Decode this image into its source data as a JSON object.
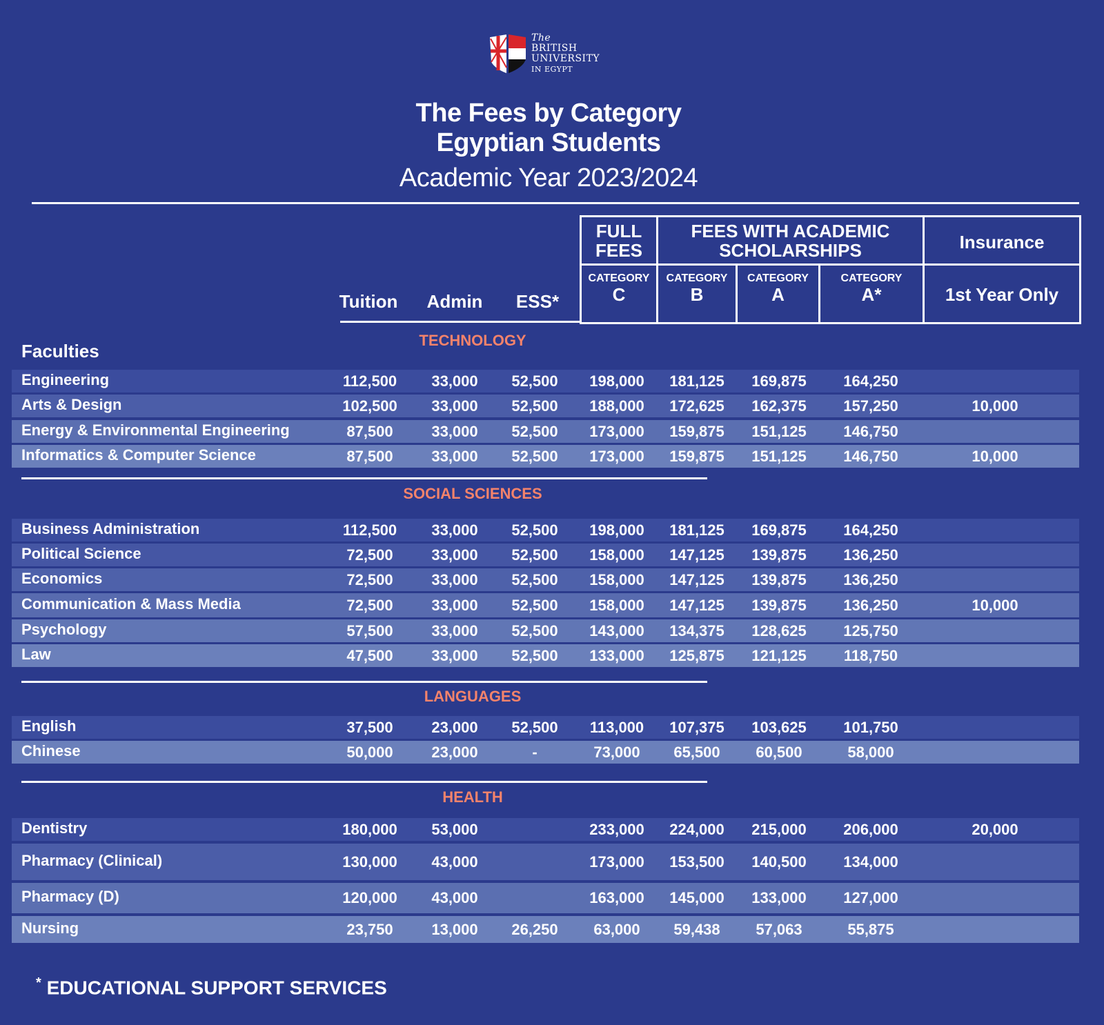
{
  "logo": {
    "line1": "The",
    "line2": "BRITISH",
    "line3": "UNIVERSITY",
    "line4": "IN EGYPT"
  },
  "title": {
    "line1": "The Fees by Category",
    "line2": "Egyptian Students",
    "subtitle": "Academic Year 2023/2024"
  },
  "header": {
    "full_fees": "FULL FEES",
    "scholarships": "FEES WITH ACADEMIC SCHOLARSHIPS",
    "insurance": "Insurance",
    "category_label": "CATEGORY",
    "cat_c": "C",
    "cat_b": "B",
    "cat_a": "A",
    "cat_astar": "A*",
    "first_year": "1st Year Only",
    "tuition": "Tuition",
    "admin": "Admin",
    "ess": "ESS*",
    "faculties": "Faculties"
  },
  "colors": {
    "background": "#2b3a8c",
    "section_heading": "#f4836b",
    "row_dark": "#3b4c9e",
    "row_light": "#6b80bb"
  },
  "sections": [
    {
      "name": "TECHNOLOGY",
      "rows": [
        {
          "faculty": "Engineering",
          "values": [
            "112,500",
            "33,000",
            "52,500",
            "198,000",
            "181,125",
            "169,875",
            "164,250",
            ""
          ]
        },
        {
          "faculty": "Arts & Design",
          "values": [
            "102,500",
            "33,000",
            "52,500",
            "188,000",
            "172,625",
            "162,375",
            "157,250",
            "10,000"
          ]
        },
        {
          "faculty": "Energy & Environmental Engineering",
          "values": [
            "87,500",
            "33,000",
            "52,500",
            "173,000",
            "159,875",
            "151,125",
            "146,750",
            ""
          ]
        },
        {
          "faculty": "Informatics & Computer Science",
          "values": [
            "87,500",
            "33,000",
            "52,500",
            "173,000",
            "159,875",
            "151,125",
            "146,750",
            "10,000"
          ]
        }
      ]
    },
    {
      "name": "SOCIAL SCIENCES",
      "rows": [
        {
          "faculty": "Business Administration",
          "values": [
            "112,500",
            "33,000",
            "52,500",
            "198,000",
            "181,125",
            "169,875",
            "164,250",
            ""
          ]
        },
        {
          "faculty": "Political Science",
          "values": [
            "72,500",
            "33,000",
            "52,500",
            "158,000",
            "147,125",
            "139,875",
            "136,250",
            ""
          ]
        },
        {
          "faculty": "Economics",
          "values": [
            "72,500",
            "33,000",
            "52,500",
            "158,000",
            "147,125",
            "139,875",
            "136,250",
            ""
          ]
        },
        {
          "faculty": "Communication & Mass Media",
          "values": [
            "72,500",
            "33,000",
            "52,500",
            "158,000",
            "147,125",
            "139,875",
            "136,250",
            "10,000"
          ]
        },
        {
          "faculty": "Psychology",
          "values": [
            "57,500",
            "33,000",
            "52,500",
            "143,000",
            "134,375",
            "128,625",
            "125,750",
            ""
          ]
        },
        {
          "faculty": "Law",
          "values": [
            "47,500",
            "33,000",
            "52,500",
            "133,000",
            "125,875",
            "121,125",
            "118,750",
            ""
          ]
        }
      ]
    },
    {
      "name": "LANGUAGES",
      "rows": [
        {
          "faculty": "English",
          "values": [
            "37,500",
            "23,000",
            "52,500",
            "113,000",
            "107,375",
            "103,625",
            "101,750",
            ""
          ]
        },
        {
          "faculty": "Chinese",
          "values": [
            "50,000",
            "23,000",
            "-",
            "73,000",
            "65,500",
            "60,500",
            "58,000",
            ""
          ]
        }
      ]
    },
    {
      "name": "HEALTH",
      "rows": [
        {
          "faculty": "Dentistry",
          "values": [
            "180,000",
            "53,000",
            "",
            "233,000",
            "224,000",
            "215,000",
            "206,000",
            "20,000"
          ]
        },
        {
          "faculty": "Pharmacy (Clinical)",
          "values": [
            "130,000",
            "43,000",
            "",
            "173,000",
            "153,500",
            "140,500",
            "134,000",
            ""
          ]
        },
        {
          "faculty": "Pharmacy (D)",
          "values": [
            "120,000",
            "43,000",
            "",
            "163,000",
            "145,000",
            "133,000",
            "127,000",
            ""
          ]
        },
        {
          "faculty": "Nursing",
          "values": [
            "23,750",
            "13,000",
            "26,250",
            "63,000",
            "59,438",
            "57,063",
            "55,875",
            ""
          ]
        }
      ]
    }
  ],
  "footnote": {
    "marker": "*",
    "text": "EDUCATIONAL SUPPORT SERVICES"
  }
}
